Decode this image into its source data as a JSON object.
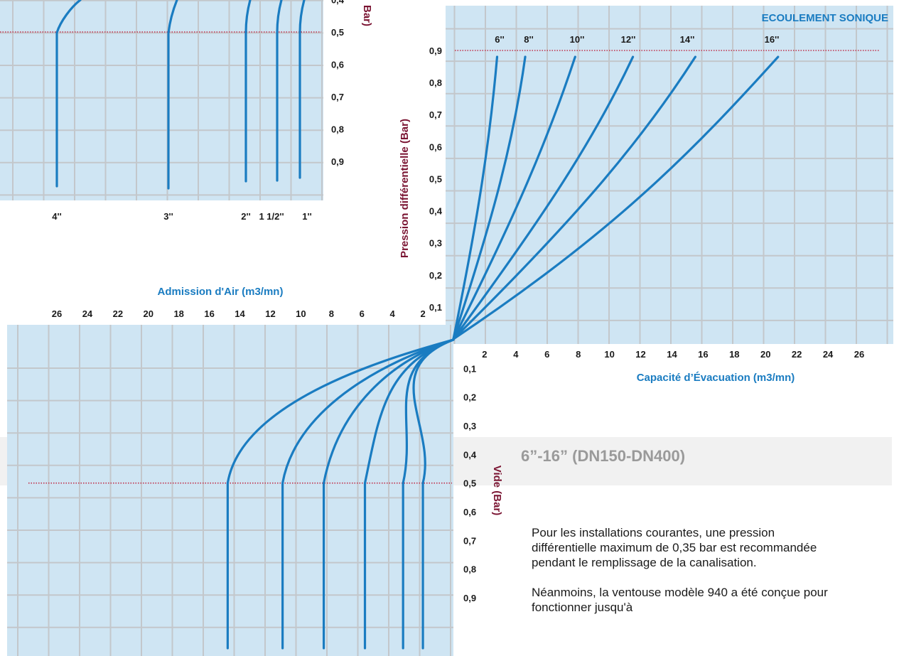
{
  "colors": {
    "panel": "#cfe5f3",
    "grid": "#c3c7cb",
    "curve": "#1a7cc1",
    "sonic_line": "#c0304a",
    "band": "#f1f1f1"
  },
  "band_label": "6”-16” (DN150-DN400)",
  "notes": [
    "Pour les installations courantes, une pression différentielle maximum de 0,35 bar est recommandée pendant le remplissage de la canalisation.",
    "Néanmoins, la ventouse modèle 940 a été conçue pour fonctionner jusqu'à"
  ],
  "chart_data": [
    {
      "id": "top-left-intake",
      "type": "line",
      "title": "",
      "ylabel": "Bar)",
      "yticks": [
        "0,4",
        "0,5",
        "0,6",
        "0,7",
        "0,8",
        "0,9"
      ],
      "size_labels": [
        "4''",
        "3''",
        "2''",
        "1 1/2''",
        "1''"
      ],
      "threshold": 0.5
    },
    {
      "id": "discharge",
      "type": "line",
      "title": "ECOULEMENT SONIQUE",
      "xlabel": "Capacité d’Évacuation (m3/mn)",
      "ylabel": "Pression différentielle (Bar)",
      "xticks": [
        "2",
        "4",
        "6",
        "8",
        "10",
        "12",
        "14",
        "16",
        "18",
        "20",
        "22",
        "24",
        "26"
      ],
      "yticks": [
        "0,1",
        "0,2",
        "0,3",
        "0,4",
        "0,5",
        "0,6",
        "0,7",
        "0,8",
        "0,9"
      ],
      "xlim": [
        0,
        26
      ],
      "ylim": [
        0,
        0.9
      ],
      "sonic_pressure": 0.9,
      "series": [
        {
          "name": "6''",
          "points": [
            [
              0,
              0
            ],
            [
              1.5,
              0.36
            ],
            [
              2.3,
              0.6
            ],
            [
              2.8,
              0.88
            ]
          ]
        },
        {
          "name": "8''",
          "points": [
            [
              0,
              0
            ],
            [
              2.4,
              0.36
            ],
            [
              3.8,
              0.6
            ],
            [
              4.6,
              0.88
            ]
          ]
        },
        {
          "name": "10''",
          "points": [
            [
              0,
              0
            ],
            [
              3.7,
              0.36
            ],
            [
              5.9,
              0.6
            ],
            [
              7.8,
              0.88
            ]
          ]
        },
        {
          "name": "12''",
          "points": [
            [
              0,
              0
            ],
            [
              5.4,
              0.36
            ],
            [
              8.8,
              0.6
            ],
            [
              11.5,
              0.88
            ]
          ]
        },
        {
          "name": "14''",
          "points": [
            [
              0,
              0
            ],
            [
              7.5,
              0.36
            ],
            [
              11.8,
              0.6
            ],
            [
              15.5,
              0.88
            ]
          ]
        },
        {
          "name": "16''",
          "points": [
            [
              0,
              0
            ],
            [
              10.5,
              0.34
            ],
            [
              15.6,
              0.6
            ],
            [
              20.8,
              0.88
            ]
          ]
        }
      ]
    },
    {
      "id": "intake",
      "type": "line",
      "title": "Admission d'Air (m3/mn)",
      "ylabel": "Vide (Bar)",
      "xticks": [
        "26",
        "24",
        "22",
        "20",
        "18",
        "16",
        "14",
        "12",
        "10",
        "8",
        "6",
        "4",
        "2"
      ],
      "yticks": [
        "0,1",
        "0,2",
        "0,3",
        "0,4",
        "0,5",
        "0,6",
        "0,7",
        "0,8",
        "0,9"
      ],
      "xlim": [
        0,
        26
      ],
      "threshold": 0.5,
      "series": [
        {
          "name": "16''",
          "flow_at_threshold": 14.8
        },
        {
          "name": "14''",
          "flow_at_threshold": 11.2
        },
        {
          "name": "12''",
          "flow_at_threshold": 8.5
        },
        {
          "name": "10''",
          "flow_at_threshold": 5.8
        },
        {
          "name": "8''",
          "flow_at_threshold": 3.3
        },
        {
          "name": "6''",
          "flow_at_threshold": 2.0
        }
      ]
    }
  ]
}
